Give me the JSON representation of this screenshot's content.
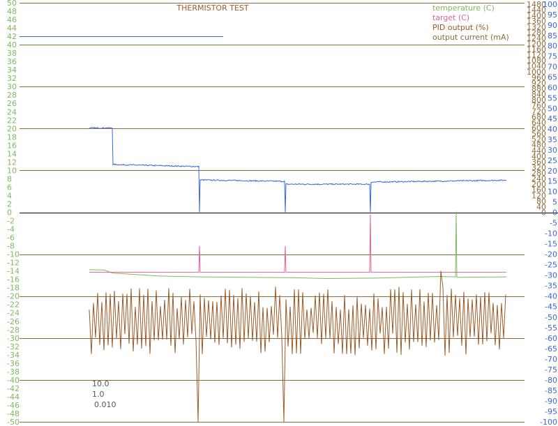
{
  "chart_data": {
    "type": "line",
    "title": "THERMISTOR TEST",
    "annotations": [
      "10.0",
      "1.0",
      "0.010"
    ],
    "colors": {
      "temperature": "#7fb860",
      "target": "#e0609a",
      "pid": "#9a5a28",
      "current": "#3a64d8",
      "major_grid": "#8b6b3c",
      "zero_line": "#000000",
      "left_ticks": "#7fb860",
      "right_a_ticks": "#8b6b3c",
      "right_b_ticks": "#3a64d8"
    },
    "axes": {
      "left": {
        "ylim": [
          -50,
          50
        ],
        "step": 2,
        "series": "temperature / target / PID output",
        "ticks": [
          "50",
          "48",
          "46",
          "44",
          "42",
          "40",
          "38",
          "36",
          "34",
          "32",
          "30",
          "28",
          "26",
          "24",
          "22",
          "20",
          "18",
          "16",
          "14",
          "12",
          "10",
          "8",
          "6",
          "4",
          "2",
          "0",
          "-2",
          "-4",
          "-6",
          "-8",
          "-10",
          "-12",
          "-14",
          "-16",
          "-18",
          "-20",
          "-22",
          "-24",
          "-26",
          "-28",
          "-30",
          "-32",
          "-34",
          "-36",
          "-38",
          "-40",
          "-42",
          "-44",
          "-46",
          "-48",
          "-50"
        ]
      },
      "right_a": {
        "ylim": [
          0,
          1480
        ],
        "series": "output current (mA)",
        "ticks": [
          "1480",
          "1440",
          "1400",
          "1360",
          "1320",
          "1280",
          "1240",
          "1200",
          "1160",
          "1120",
          "1080",
          "1040",
          "1000",
          "960",
          "920",
          "880",
          "840",
          "800",
          "760",
          "720",
          "680",
          "640",
          "600",
          "560",
          "520",
          "480",
          "440",
          "400",
          "360",
          "320",
          "280",
          "240",
          "200",
          "160",
          "120",
          "80",
          "40",
          "0"
        ]
      },
      "right_b": {
        "ylim": [
          -100,
          100
        ],
        "step": 5,
        "ticks": [
          "100",
          "95",
          "90",
          "85",
          "80",
          "75",
          "70",
          "65",
          "60",
          "55",
          "50",
          "45",
          "40",
          "35",
          "30",
          "25",
          "20",
          "15",
          "10",
          "5",
          "0",
          "-5",
          "-10",
          "-15",
          "-20",
          "-25",
          "-30",
          "-35",
          "-40",
          "-45",
          "-50",
          "-55",
          "-60",
          "-65",
          "-70",
          "-75",
          "-80",
          "-85",
          "-90",
          "-95",
          "-100"
        ]
      }
    },
    "grid": true,
    "legend": {
      "placement": "top-right",
      "entries": [
        {
          "name": "temperature (C)",
          "color": "#7fb860"
        },
        {
          "name": "target (C)",
          "color": "#e0609a"
        },
        {
          "name": "PID output (%)",
          "color": "#9a5a28"
        },
        {
          "name": "output current (mA)",
          "color": "#8b6b3c"
        }
      ]
    },
    "x_range": [
      0,
      598
    ],
    "series": [
      {
        "name": "temperature (C)",
        "axis": "left",
        "points": [
          [
            0,
            -13.7
          ],
          [
            22,
            -13.8
          ],
          [
            33,
            -14.5
          ],
          [
            100,
            -15.2
          ],
          [
            160,
            -15.4
          ],
          [
            290,
            -15.6
          ],
          [
            340,
            -15.8
          ],
          [
            410,
            -15.7
          ],
          [
            504,
            -15.3
          ],
          [
            525,
            -15.4
          ],
          [
            526,
            0.2
          ],
          [
            527,
            -15.5
          ],
          [
            598,
            -15.4
          ]
        ]
      },
      {
        "name": "target (C)",
        "axis": "left",
        "points": [
          [
            0,
            -14.3
          ],
          [
            157,
            -14.3
          ],
          [
            158,
            -8
          ],
          [
            159,
            -14.3
          ],
          [
            280,
            -14.3
          ],
          [
            281,
            -8
          ],
          [
            282,
            -14.3
          ],
          [
            402,
            -14.3
          ],
          [
            403,
            -0.5
          ],
          [
            404,
            -14.3
          ],
          [
            598,
            -14.3
          ]
        ]
      },
      {
        "name": "PID output (%)",
        "axis": "left",
        "mean": -26,
        "amplitude": 5.5,
        "spikes": [
          [
            157,
            -50
          ],
          [
            280,
            -50
          ],
          [
            504,
            -14
          ]
        ],
        "x_step": 3
      },
      {
        "name": "output current (mA)",
        "axis": "right_a",
        "points": [
          [
            0,
            600
          ],
          [
            33,
            600
          ],
          [
            34,
            340
          ],
          [
            157,
            325
          ],
          [
            158,
            0
          ],
          [
            159,
            230
          ],
          [
            280,
            220
          ],
          [
            281,
            0
          ],
          [
            282,
            200
          ],
          [
            402,
            200
          ],
          [
            403,
            0
          ],
          [
            404,
            215
          ],
          [
            598,
            228
          ]
        ],
        "noise": 8
      }
    ],
    "reference_line": {
      "axis": "left",
      "y": 42,
      "x_end": 190
    }
  }
}
